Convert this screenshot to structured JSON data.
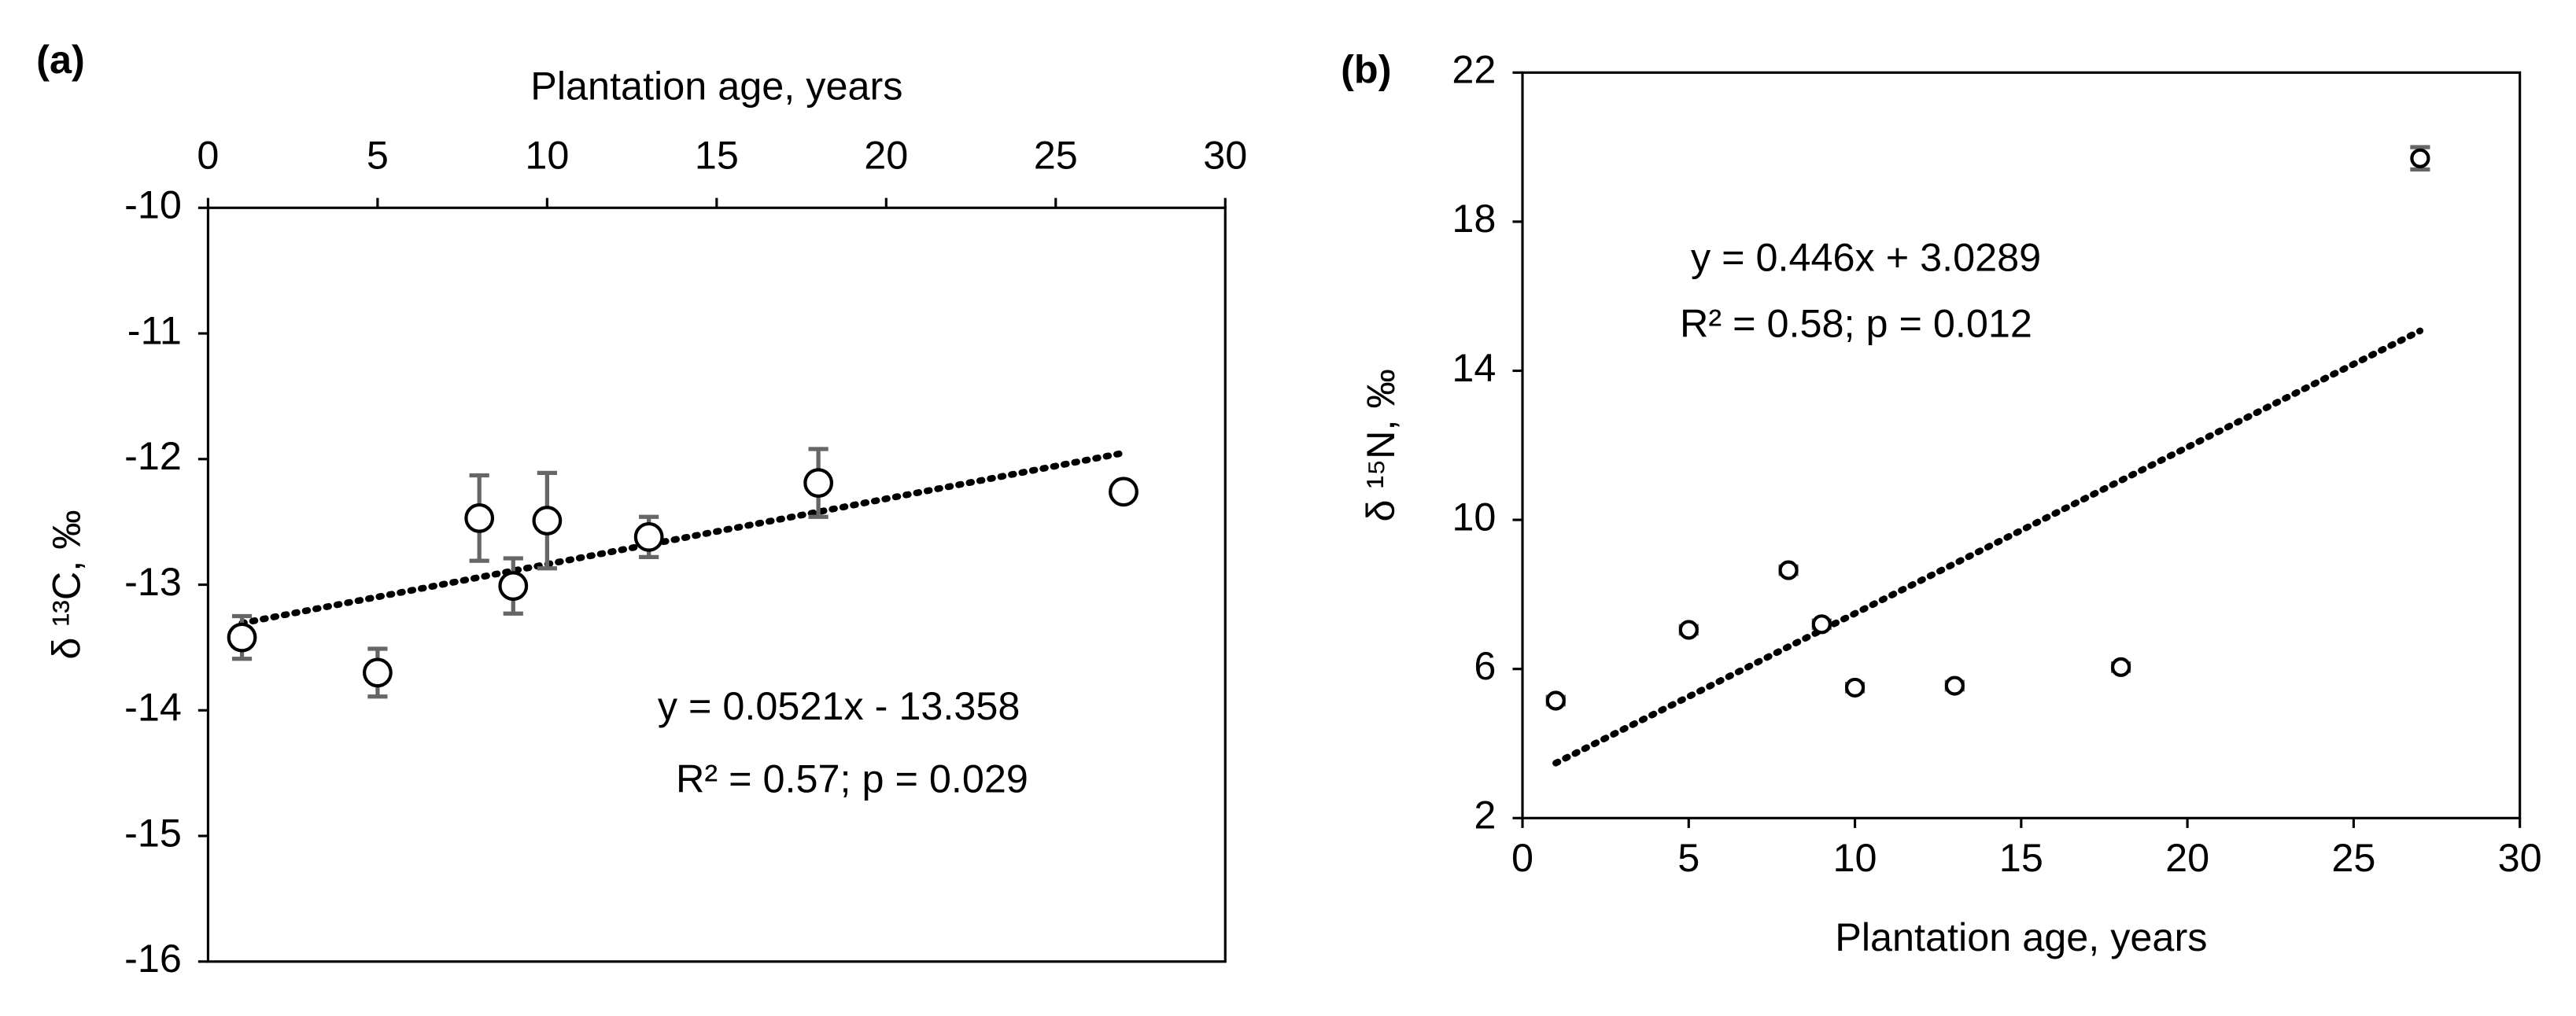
{
  "chart_data": [
    {
      "type": "scatter",
      "panel": "(a)",
      "x_label": "Plantation age, years",
      "x_axis_position": "top",
      "y_label": "δ ¹³C, ‰",
      "x": [
        1,
        5,
        8,
        9,
        10,
        13,
        18,
        27
      ],
      "values": [
        -13.42,
        -13.7,
        -12.47,
        -13.01,
        -12.49,
        -12.62,
        -12.19,
        -12.26
      ],
      "errors": [
        0.17,
        0.19,
        0.34,
        0.22,
        0.38,
        0.16,
        0.27,
        0.06
      ],
      "xlim": [
        0,
        30
      ],
      "xticks": [
        0,
        5,
        10,
        15,
        20,
        25,
        30
      ],
      "ylim": [
        -16,
        -10
      ],
      "yticks": [
        -16,
        -15,
        -14,
        -13,
        -12,
        -11,
        -10
      ],
      "trendline": {
        "slope": 0.0521,
        "intercept": -13.358,
        "label": "y = 0.0521x - 13.358"
      },
      "annotation": "R² = 0.57; p = 0.029"
    },
    {
      "type": "scatter",
      "panel": "(b)",
      "x_label": "Plantation age, years",
      "x_axis_position": "bottom",
      "y_label": "δ ¹⁵N, ‰",
      "x": [
        1,
        5,
        8,
        9,
        10,
        13,
        18,
        27
      ],
      "values": [
        5.15,
        7.05,
        8.65,
        7.2,
        5.5,
        5.55,
        6.05,
        19.7
      ],
      "errors": [
        0.1,
        0.1,
        0.1,
        0.1,
        0.1,
        0.1,
        0.1,
        0.3
      ],
      "xlim": [
        0,
        30
      ],
      "xticks": [
        0,
        5,
        10,
        15,
        20,
        25,
        30
      ],
      "ylim": [
        2,
        22
      ],
      "yticks": [
        2,
        6,
        10,
        14,
        18,
        22
      ],
      "trendline": {
        "slope": 0.446,
        "intercept": 3.0289,
        "label": "y = 0.446x + 3.0289"
      },
      "annotation": "R² = 0.58; p = 0.012"
    }
  ]
}
